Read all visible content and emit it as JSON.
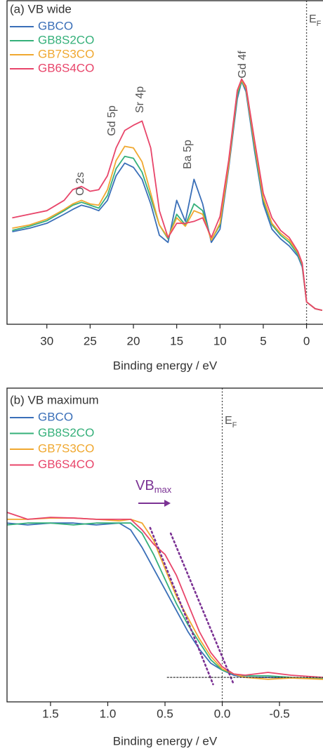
{
  "chart_data": [
    {
      "type": "line",
      "title": "(a) VB wide",
      "xlabel": "Binding energy / eV",
      "legend": "upper left",
      "xlim": [
        34.6,
        -1.9
      ],
      "xticks": [
        30,
        25,
        20,
        15,
        10,
        5,
        0
      ],
      "ylim": [
        0,
        100
      ],
      "vline": 0,
      "x": [
        34,
        32,
        30,
        28,
        27,
        26,
        25,
        24,
        23,
        22,
        21,
        20,
        19,
        18,
        17,
        16,
        15,
        14,
        13,
        12,
        11,
        10,
        9,
        8,
        7.5,
        7,
        6,
        5,
        4,
        3,
        2,
        1,
        0.5,
        0,
        -1,
        -1.8
      ],
      "series": [
        {
          "name": "GBCO",
          "color": "#3a6fb8",
          "values": [
            28.6,
            29.7,
            31.2,
            34.0,
            35.5,
            36.8,
            36.1,
            35.1,
            38.3,
            45.9,
            49.8,
            48.5,
            44.8,
            37.2,
            27.5,
            25.3,
            38.3,
            31.8,
            44.8,
            37.2,
            25.3,
            29.4,
            48.1,
            69.7,
            75.1,
            71.9,
            53.5,
            37.2,
            29.4,
            26.4,
            24.2,
            21.0,
            17.7,
            6.9,
            4.8,
            4.3
          ]
        },
        {
          "name": "GB8S2CO",
          "color": "#35b07a",
          "values": [
            29.0,
            30.3,
            32.0,
            35.1,
            36.8,
            37.7,
            36.8,
            35.9,
            39.8,
            48.1,
            51.9,
            51.3,
            47.0,
            39.0,
            30.7,
            26.4,
            34.0,
            30.7,
            37.2,
            35.1,
            26.0,
            30.7,
            49.1,
            70.8,
            75.1,
            72.9,
            54.5,
            38.3,
            30.7,
            27.5,
            25.3,
            21.6,
            18.2,
            6.9,
            4.8,
            4.3
          ]
        },
        {
          "name": "GB7S3CO",
          "color": "#f0a830",
          "values": [
            29.7,
            30.7,
            32.5,
            35.5,
            37.2,
            38.3,
            37.2,
            36.8,
            41.6,
            50.6,
            55.0,
            54.5,
            50.2,
            40.5,
            30.7,
            26.8,
            32.9,
            30.3,
            35.1,
            34.0,
            26.0,
            31.2,
            49.1,
            71.9,
            75.5,
            72.9,
            55.6,
            39.0,
            31.2,
            28.1,
            26.0,
            22.1,
            18.6,
            6.9,
            4.8,
            4.3
          ]
        },
        {
          "name": "GB6S4CO",
          "color": "#e8456a",
          "values": [
            32.9,
            34.0,
            35.1,
            38.3,
            41.6,
            42.6,
            41.1,
            41.6,
            45.9,
            54.5,
            59.9,
            61.5,
            62.8,
            54.5,
            35.1,
            26.8,
            31.2,
            31.2,
            31.8,
            32.9,
            26.8,
            33.3,
            50.6,
            72.3,
            75.8,
            73.6,
            56.7,
            40.5,
            32.9,
            29.0,
            26.8,
            22.5,
            18.9,
            6.9,
            4.8,
            4.3
          ]
        }
      ],
      "annotations": [
        {
          "text": "O 2s"
        },
        {
          "text": "Gd 5p"
        },
        {
          "text": "Sr 4p"
        },
        {
          "text": "Ba 5p"
        },
        {
          "text": "Gd 4f"
        },
        {
          "text": "E",
          "sub": "F"
        }
      ]
    },
    {
      "type": "line",
      "title": "(b) VB maximum",
      "xlabel": "Binding energy / eV",
      "legend": "upper left",
      "xlim": [
        1.88,
        -0.88
      ],
      "xticks": [
        1.5,
        {
          "value": 1,
          "label": "1.0"
        },
        0.5,
        {
          "value": 0,
          "label": "0.0"
        },
        -0.5
      ],
      "ylim": [
        0,
        100
      ],
      "vline": 0,
      "x": [
        1.88,
        1.7,
        1.5,
        1.3,
        1.1,
        0.9,
        0.8,
        0.7,
        0.6,
        0.5,
        0.4,
        0.3,
        0.2,
        0.1,
        0.0,
        -0.1,
        -0.2,
        -0.4,
        -0.6,
        -0.88
      ],
      "series": [
        {
          "name": "GBCO",
          "color": "#3a6fb8",
          "values": [
            57.0,
            56.4,
            57.0,
            57.0,
            56.4,
            57.0,
            54.8,
            49.2,
            42.5,
            35.8,
            29.1,
            22.4,
            16.8,
            12.3,
            10.1,
            8.5,
            7.8,
            7.8,
            7.6,
            7.4
          ]
        },
        {
          "name": "GB8S2CO",
          "color": "#35b07a",
          "values": [
            56.4,
            57.0,
            57.0,
            56.4,
            57.0,
            57.0,
            57.0,
            53.7,
            47.0,
            39.1,
            31.3,
            24.6,
            19.0,
            13.4,
            10.1,
            8.9,
            8.3,
            8.3,
            7.8,
            7.4
          ]
        },
        {
          "name": "GB7S3CO",
          "color": "#f0a830",
          "values": [
            58.2,
            58.2,
            58.6,
            58.6,
            58.2,
            57.7,
            58.2,
            57.0,
            51.5,
            42.5,
            33.6,
            26.8,
            20.1,
            14.5,
            10.5,
            8.9,
            7.8,
            7.2,
            7.6,
            7.2
          ]
        },
        {
          "name": "GB6S4CO",
          "color": "#e8456a",
          "values": [
            60.4,
            58.2,
            58.8,
            58.6,
            58.2,
            58.2,
            58.2,
            54.8,
            50.3,
            47.0,
            40.3,
            31.3,
            22.4,
            15.7,
            11.2,
            8.9,
            8.5,
            9.4,
            8.5,
            7.8
          ]
        }
      ],
      "fit_lines": [
        {
          "color": "#7b3294",
          "x": [
            0.63,
            0.08
          ],
          "y": [
            55.5,
            5.6
          ]
        },
        {
          "color": "#7b3294",
          "x": [
            0.45,
            -0.1
          ],
          "y": [
            53.7,
            5.6
          ]
        },
        {
          "color": "#333333",
          "x": [
            0.48,
            -0.88
          ],
          "y": [
            7.8,
            7.8
          ]
        }
      ],
      "annotations": [
        {
          "text": "E",
          "sub": "F"
        },
        {
          "text": "VB",
          "sub": "max"
        }
      ]
    }
  ]
}
